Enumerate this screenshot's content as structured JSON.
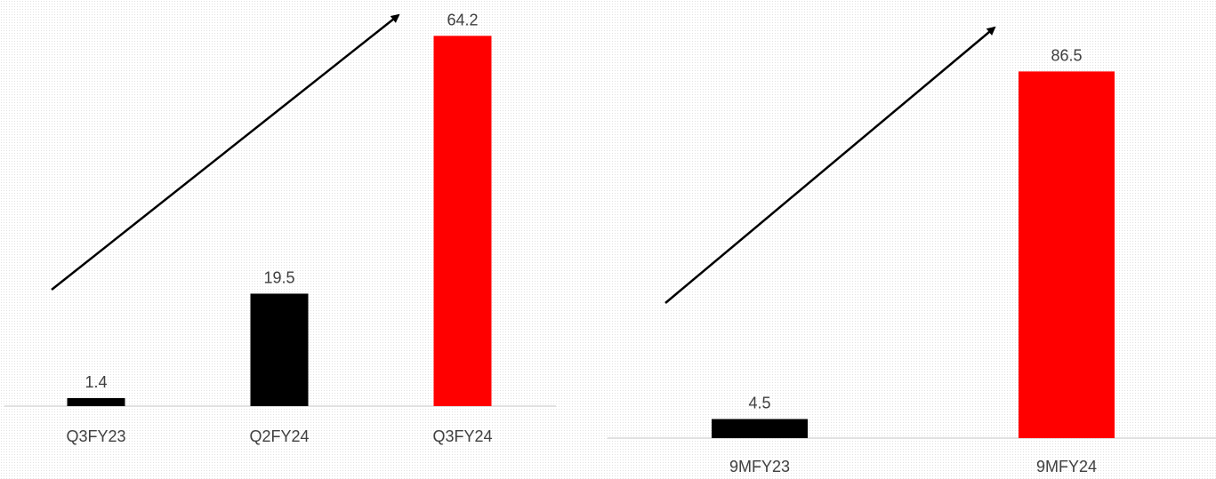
{
  "chart_data": [
    {
      "type": "bar",
      "categories": [
        "Q3FY23",
        "Q2FY24",
        "Q3FY24"
      ],
      "values": [
        1.4,
        19.5,
        64.2
      ],
      "bar_colors": [
        "#000000",
        "#000000",
        "#ff0000"
      ],
      "trend_arrow": true,
      "grid": false,
      "legend": "none"
    },
    {
      "type": "bar",
      "categories": [
        "9MFY23",
        "9MFY24"
      ],
      "values": [
        4.5,
        86.5
      ],
      "bar_colors": [
        "#000000",
        "#ff0000"
      ],
      "trend_arrow": true,
      "grid": false,
      "legend": "none"
    }
  ]
}
